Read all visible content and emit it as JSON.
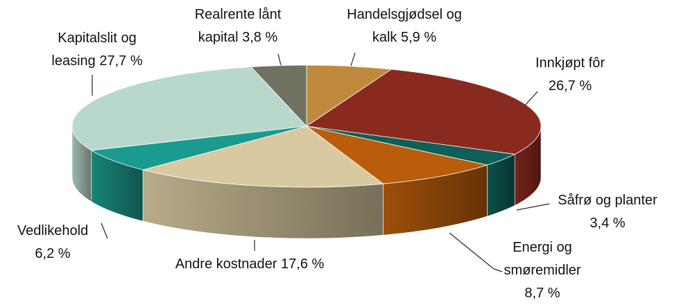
{
  "chart_data": {
    "type": "pie3d",
    "categories": [
      "Handelsgjødsel og kalk",
      "Innkjøpt fôr",
      "Såfrø og planter",
      "Energi og smøremidler",
      "Andre kostnader",
      "Vedlikehold",
      "Kapitalslit og leasing",
      "Realrente lånt kapital"
    ],
    "values": [
      5.9,
      26.7,
      3.4,
      8.7,
      17.6,
      6.2,
      27.7,
      3.8
    ],
    "value_labels": [
      "5,9 %",
      "26,7 %",
      "3,4 %",
      "8,7 %",
      "17,6 %",
      "6,2 %",
      "27,7 %",
      "3,8 %"
    ],
    "colors": [
      "#c08a3e",
      "#8a2a1f",
      "#0f5f57",
      "#b95d0c",
      "#d9c9a1",
      "#1b9b8f",
      "#b9d8cc",
      "#6f7161"
    ]
  }
}
